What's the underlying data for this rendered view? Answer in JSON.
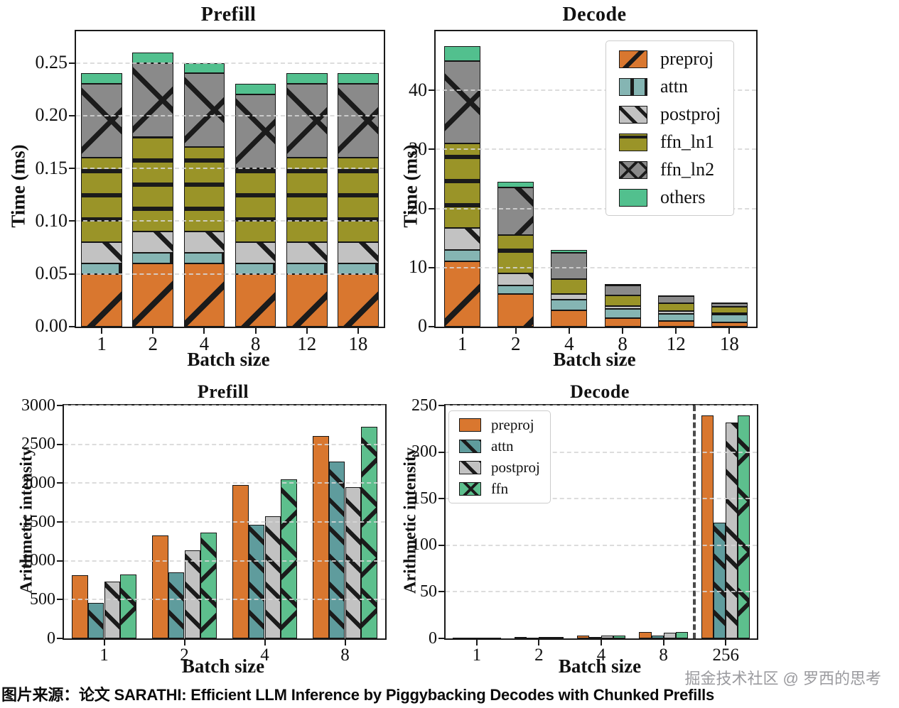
{
  "page": {
    "caption": "图片来源：论文 SARATHI: Efficient LLM Inference by Piggybacking Decodes with Chunked Prefills",
    "watermark": "掘金技术社区 @ 罗西的思考"
  },
  "colors": {
    "preproj": "#D9772F",
    "attn_light": "#85B5B3",
    "attn_dark": "#5F9C9D",
    "postproj": "#C2C2C2",
    "ffn_ln1": "#9A9428",
    "ffn_ln2": "#8A8A8A",
    "others": "#52C08E",
    "ffn": "#5DBF8D",
    "hatch_line": "#1b1b1b"
  },
  "chart_data": [
    {
      "id": "prefill_time",
      "type": "bar",
      "variant": "stacked",
      "title": "Prefill",
      "xlabel": "Batch size",
      "ylabel": "Time (ms)",
      "categories": [
        "1",
        "2",
        "4",
        "8",
        "12",
        "18"
      ],
      "ylim": [
        0,
        0.28
      ],
      "yticks": [
        "0.00",
        "0.05",
        "0.10",
        "0.15",
        "0.20",
        "0.25"
      ],
      "grid": true,
      "legend": false,
      "series": [
        {
          "name": "preproj",
          "color": "#D9772F",
          "hatch": "/",
          "values": [
            0.05,
            0.06,
            0.06,
            0.05,
            0.05,
            0.05
          ]
        },
        {
          "name": "attn",
          "color": "#85B5B3",
          "hatch": "|",
          "values": [
            0.01,
            0.01,
            0.01,
            0.01,
            0.01,
            0.01
          ]
        },
        {
          "name": "postproj",
          "color": "#C2C2C2",
          "hatch": "\\",
          "values": [
            0.02,
            0.02,
            0.02,
            0.02,
            0.02,
            0.02
          ]
        },
        {
          "name": "ffn_ln1",
          "color": "#9A9428",
          "hatch": "-",
          "values": [
            0.08,
            0.09,
            0.08,
            0.07,
            0.08,
            0.08
          ]
        },
        {
          "name": "ffn_ln2",
          "color": "#8A8A8A",
          "hatch": "x",
          "values": [
            0.07,
            0.07,
            0.07,
            0.07,
            0.07,
            0.07
          ]
        },
        {
          "name": "others",
          "color": "#52C08E",
          "hatch": "",
          "values": [
            0.01,
            0.01,
            0.01,
            0.01,
            0.01,
            0.01
          ]
        }
      ]
    },
    {
      "id": "decode_time",
      "type": "bar",
      "variant": "stacked",
      "title": "Decode",
      "xlabel": "Batch size",
      "ylabel": "Time (ms)",
      "categories": [
        "1",
        "2",
        "4",
        "8",
        "12",
        "18"
      ],
      "ylim": [
        0,
        50
      ],
      "yticks": [
        "0",
        "10",
        "20",
        "30",
        "40"
      ],
      "grid": true,
      "legend": true,
      "series": [
        {
          "name": "preproj",
          "color": "#D9772F",
          "hatch": "/",
          "values": [
            11.0,
            5.5,
            2.8,
            1.5,
            1.0,
            0.7
          ]
        },
        {
          "name": "attn",
          "color": "#85B5B3",
          "hatch": "|",
          "values": [
            2.0,
            1.5,
            1.8,
            1.5,
            1.2,
            1.3
          ]
        },
        {
          "name": "postproj",
          "color": "#C2C2C2",
          "hatch": "\\",
          "values": [
            3.7,
            2.0,
            0.9,
            0.5,
            0.5,
            0.3
          ]
        },
        {
          "name": "ffn_ln1",
          "color": "#9A9428",
          "hatch": "-",
          "values": [
            14.3,
            6.5,
            2.6,
            1.8,
            1.3,
            1.1
          ]
        },
        {
          "name": "ffn_ln2",
          "color": "#8A8A8A",
          "hatch": "x",
          "values": [
            14.0,
            8.0,
            4.4,
            1.7,
            1.2,
            0.6
          ]
        },
        {
          "name": "others",
          "color": "#52C08E",
          "hatch": "",
          "values": [
            2.5,
            1.0,
            0.5,
            0.2,
            0.1,
            0.1
          ]
        }
      ]
    },
    {
      "id": "prefill_ai",
      "type": "bar",
      "variant": "grouped",
      "title": "Prefill",
      "xlabel": "Batch size",
      "ylabel": "Arithmetic intensity",
      "categories": [
        "1",
        "2",
        "4",
        "8"
      ],
      "ylim": [
        0,
        3000
      ],
      "yticks": [
        "0",
        "500",
        "1000",
        "1500",
        "2000",
        "2500",
        "3000"
      ],
      "grid": true,
      "legend": false,
      "series": [
        {
          "name": "preproj",
          "color": "#D9772F",
          "hatch": "",
          "values": [
            810,
            1330,
            1980,
            2610
          ]
        },
        {
          "name": "attn",
          "color": "#5F9C9D",
          "hatch": "\\",
          "values": [
            460,
            855,
            1460,
            2280
          ]
        },
        {
          "name": "postproj",
          "color": "#C2C2C2",
          "hatch": "\\",
          "values": [
            730,
            1130,
            1570,
            1950
          ]
        },
        {
          "name": "ffn",
          "color": "#5DBF8D",
          "hatch": "x",
          "values": [
            820,
            1365,
            2050,
            2730
          ]
        }
      ]
    },
    {
      "id": "decode_ai",
      "type": "bar",
      "variant": "grouped",
      "title": "Decode",
      "xlabel": "Batch size",
      "ylabel": "Arithmetic intensity",
      "categories": [
        "1",
        "2",
        "4",
        "8",
        "256"
      ],
      "ylim": [
        0,
        250
      ],
      "yticks": [
        "0",
        "50",
        "100",
        "150",
        "200",
        "250"
      ],
      "grid": true,
      "legend": true,
      "separator_after_index": 3,
      "series": [
        {
          "name": "preproj",
          "color": "#D9772F",
          "hatch": "",
          "values": [
            1,
            1.5,
            3,
            7,
            239
          ]
        },
        {
          "name": "attn",
          "color": "#5F9C9D",
          "hatch": "\\",
          "values": [
            1,
            1,
            1.5,
            3,
            124
          ]
        },
        {
          "name": "postproj",
          "color": "#C2C2C2",
          "hatch": "\\",
          "values": [
            1,
            1.5,
            3,
            6,
            232
          ]
        },
        {
          "name": "ffn",
          "color": "#5DBF8D",
          "hatch": "x",
          "values": [
            1,
            1.5,
            3,
            7,
            239
          ]
        }
      ]
    }
  ]
}
